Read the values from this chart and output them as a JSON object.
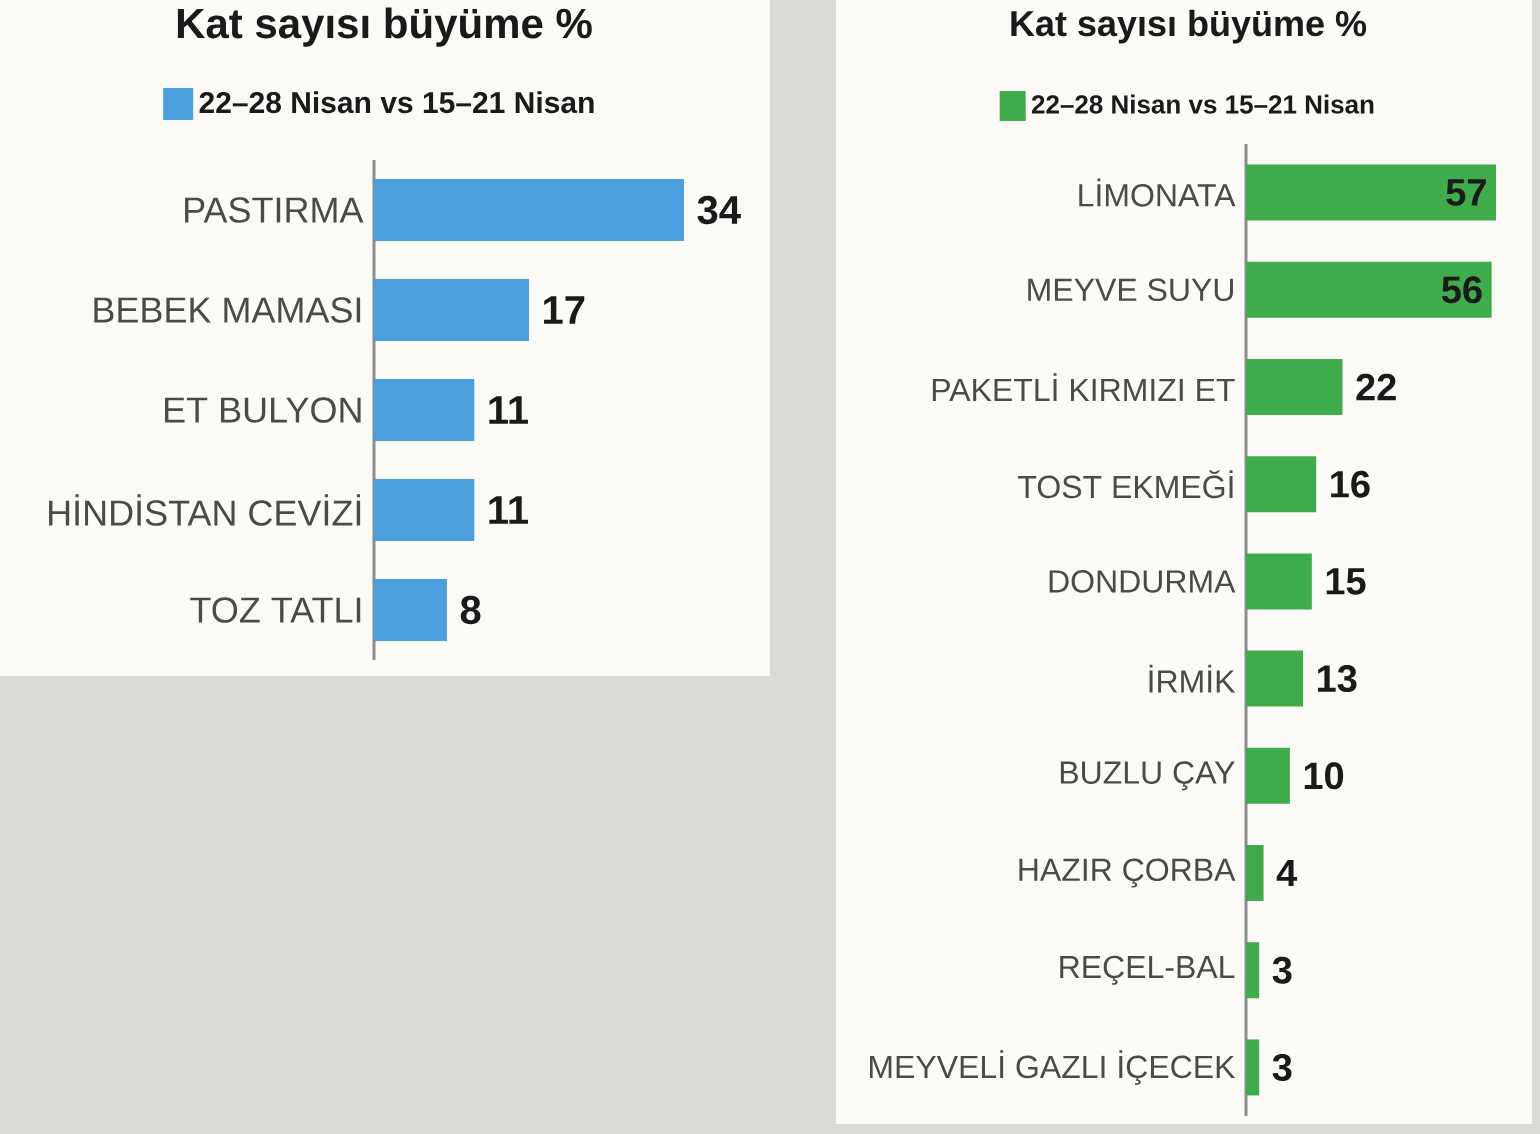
{
  "chart_data": [
    {
      "type": "bar",
      "orientation": "horizontal",
      "title": "Kat sayısı büyüme %",
      "categories": [
        "PASTIRMA",
        "BEBEK MAMASI",
        "ET BULYON",
        "HİNDİSTAN CEVİZİ",
        "TOZ TATLI"
      ],
      "series": [
        {
          "name": "22–28 Nisan vs 15–21 Nisan",
          "color": "#4b9fdc",
          "values": [
            34,
            17,
            11,
            11,
            8
          ]
        }
      ],
      "data_labels": true,
      "legend": "top",
      "tick_labels": "y"
    },
    {
      "type": "bar",
      "orientation": "horizontal",
      "title": "Kat sayısı büyüme %",
      "categories": [
        "LİMONATA",
        "MEYVE SUYU",
        "PAKETLİ KIRMIZI ET",
        "TOST EKMEĞİ",
        "DONDURMA",
        "İRMİK",
        "BUZLU ÇAY",
        "HAZIR ÇORBA",
        "REÇEL-BAL",
        "MEYVELİ GAZLI İÇECEK"
      ],
      "series": [
        {
          "name": "22–28 Nisan vs 15–21 Nisan",
          "color": "#3fac4b",
          "values": [
            57,
            56,
            22,
            16,
            15,
            13,
            10,
            4,
            3,
            3
          ]
        }
      ],
      "data_labels": true,
      "legend": "top",
      "tick_labels": "y"
    }
  ]
}
